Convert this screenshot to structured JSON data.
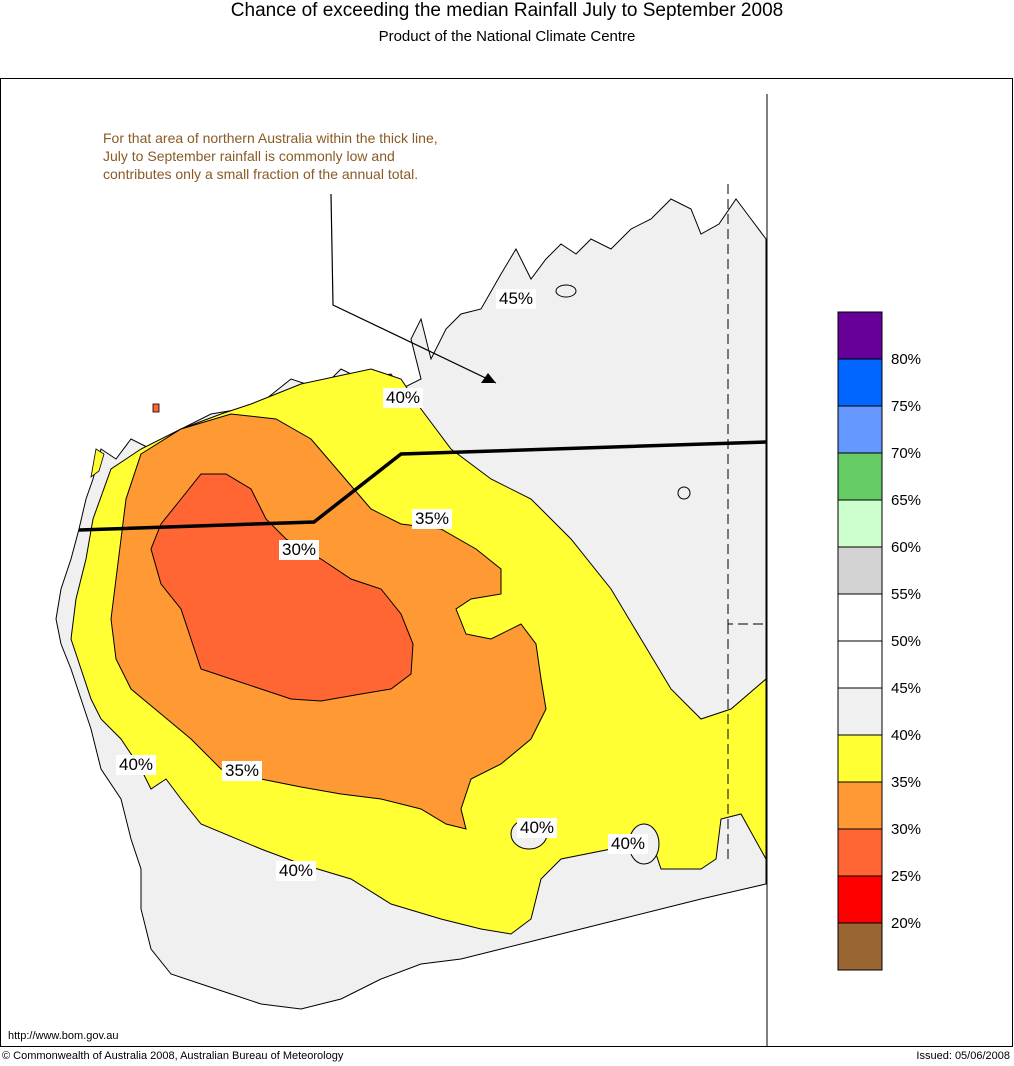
{
  "header": {
    "title": "Chance of exceeding the median Rainfall July to September 2008",
    "subtitle": "Product of the National Climate Centre"
  },
  "map": {
    "note": "For that area of northern Australia within the thick line, July to September rainfall is commonly low and contributes only a small fraction of the annual total.",
    "contour_labels": [
      "45%",
      "40%",
      "35%",
      "30%",
      "40%",
      "35%",
      "40%",
      "40%",
      "40%"
    ],
    "region_colors": {
      "ocean": "#ffffff",
      "band_40_45": "#f0f0f0",
      "band_35_40": "#ffff33",
      "band_30_35": "#ff9933",
      "band_25_30": "#ff6633"
    }
  },
  "legend": {
    "labels": [
      "80%",
      "75%",
      "70%",
      "65%",
      "60%",
      "55%",
      "50%",
      "45%",
      "40%",
      "35%",
      "30%",
      "25%",
      "20%"
    ],
    "colors": [
      "#660099",
      "#0066ff",
      "#6699ff",
      "#66cc66",
      "#ccffcc",
      "#d3d3d3",
      "#ffffff",
      "#ffffff",
      "#f0f0f0",
      "#ffff33",
      "#ff9933",
      "#ff6633",
      "#ff0000",
      "#996633"
    ]
  },
  "footer": {
    "url": "http://www.bom.gov.au",
    "copyright": "© Commonwealth of Australia 2008, Australian Bureau of Meteorology",
    "issued": "Issued: 05/06/2008"
  }
}
